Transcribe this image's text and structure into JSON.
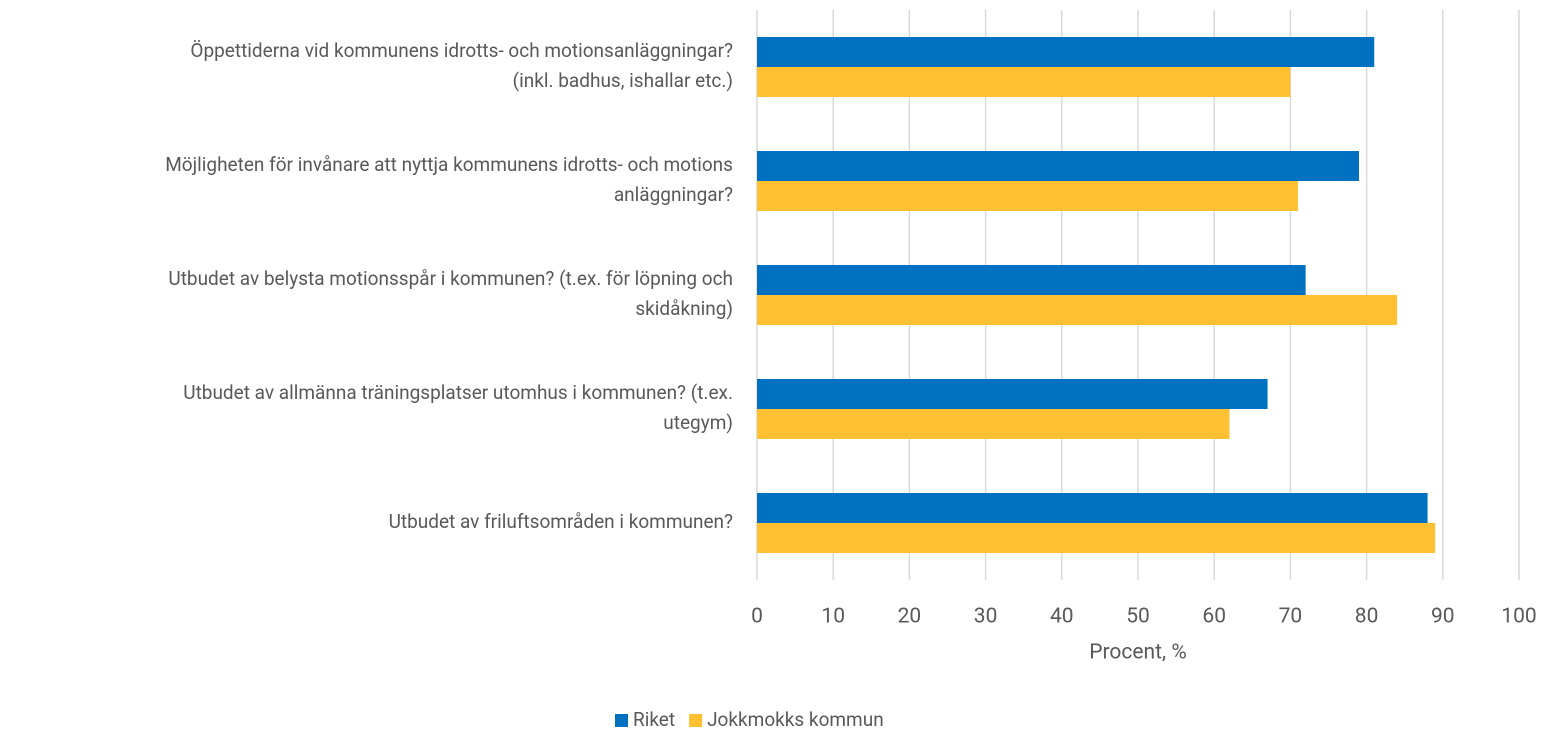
{
  "chart_data": {
    "type": "bar",
    "orientation": "horizontal",
    "categories": [
      [
        "Öppettiderna vid kommunens idrotts- och motionsanläggningar?",
        "(inkl. badhus, ishallar etc.)"
      ],
      [
        "Möjligheten för invånare att nyttja kommunens idrotts- och motions",
        "anläggningar?"
      ],
      [
        "Utbudet av belysta motionsspår i kommunen? (t.ex. för löpning och",
        "skidåkning)"
      ],
      [
        "Utbudet av allmänna träningsplatser utomhus i kommunen? (t.ex.",
        "utegym)"
      ],
      [
        "Utbudet av friluftsområden i kommunen?"
      ]
    ],
    "series": [
      {
        "name": "Riket",
        "color": "#0070c0",
        "values": [
          81,
          79,
          72,
          67,
          88
        ]
      },
      {
        "name": "Jokkmokks kommun",
        "color": "#ffc132",
        "values": [
          70,
          71,
          84,
          62,
          89
        ]
      }
    ],
    "xlabel": "Procent, %",
    "xlim": [
      0,
      100
    ],
    "xticks": [
      0,
      10,
      20,
      30,
      40,
      50,
      60,
      70,
      80,
      90,
      100
    ],
    "grid": true,
    "legend": "bottom"
  }
}
